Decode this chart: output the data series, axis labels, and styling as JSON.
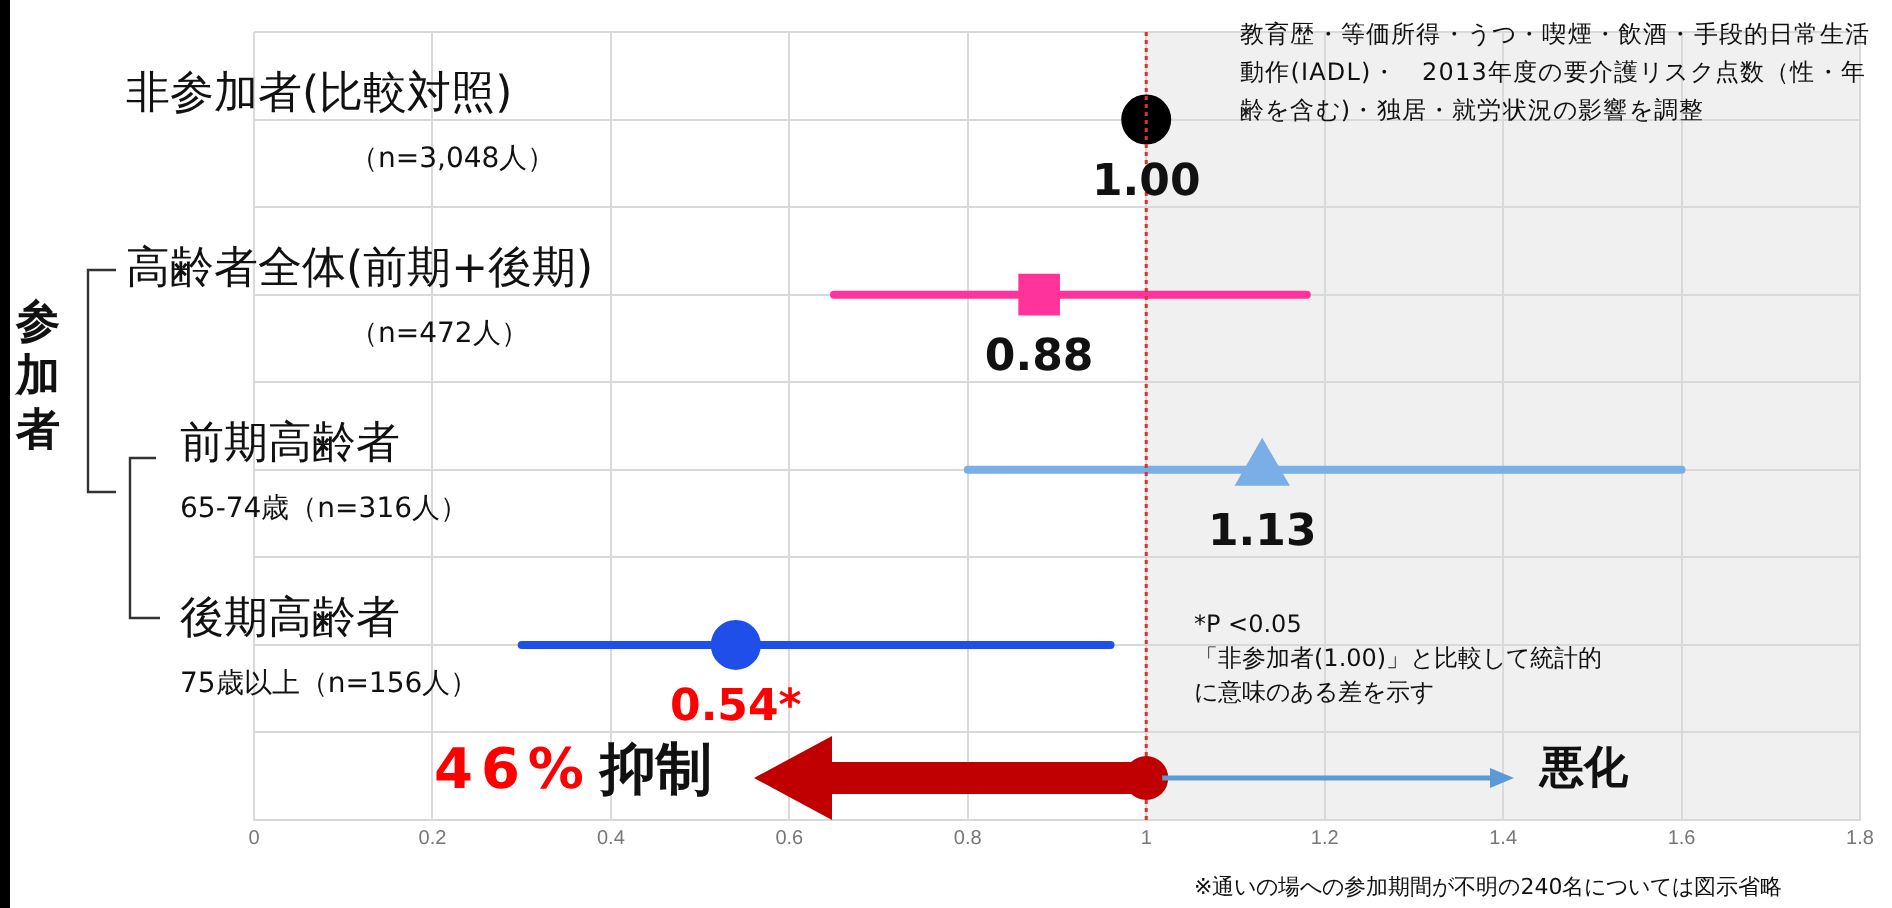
{
  "chart_data": {
    "type": "scatter",
    "orientation": "horizontal",
    "categories": [
      "非参加者(比較対照)\n（n=3,048人）",
      "高齢者全体(前期+後期)\n（n=472人）",
      "前期高齢者\n65-74歳（n=316人）",
      "後期高齢者\n75歳以上（n=156人）"
    ],
    "series": [
      {
        "color": "#000000",
        "marker": "circle",
        "values": [
          1.0,
          null,
          null,
          null
        ],
        "value_labels": [
          "1.00",
          null,
          null,
          null
        ]
      },
      {
        "color": "#ff3399",
        "marker": "square",
        "values": [
          null,
          0.88,
          null,
          null
        ],
        "errors": [
          null,
          [
            0.65,
            1.18
          ],
          null,
          null
        ],
        "value_labels": [
          null,
          "0.88",
          null,
          null
        ]
      },
      {
        "color": "#7aaee6",
        "marker": "triangle",
        "values": [
          null,
          null,
          1.13,
          null
        ],
        "errors": [
          null,
          null,
          [
            0.8,
            1.6
          ],
          null
        ],
        "value_labels": [
          null,
          null,
          "1.13",
          null
        ]
      },
      {
        "color": "#1f4fe8",
        "marker": "circle",
        "values": [
          null,
          null,
          null,
          0.54
        ],
        "errors": [
          null,
          null,
          null,
          [
            0.3,
            0.96
          ]
        ],
        "value_labels": [
          null,
          null,
          null,
          "0.54*"
        ]
      }
    ],
    "xlim": [
      0,
      1.8
    ],
    "xticks": [
      0,
      0.2,
      0.4,
      0.6,
      0.8,
      1,
      1.2,
      1.4,
      1.6,
      1.8
    ],
    "grid": true,
    "legend": false,
    "ref_lines": [
      {
        "axis": "x",
        "value": 1,
        "color": "#e03030",
        "line_style": "dotted"
      }
    ],
    "bands": [
      {
        "axis": "x",
        "from": 1,
        "to": 1.8,
        "color": "#f0f0f0"
      }
    ],
    "annotations": [
      "教育歴・等価所得・うつ・喫煙・飲酒・手段的日常生活動作(IADL)・　2013年度の要介護リスク点数（性・年齢を含む)・独居・就労状況の影響を調整",
      "*P <0.05\n「非参加者(1.00)」と比較して統計的に意味のある差を示す",
      "46%",
      "抑制",
      "悪化",
      "参加者",
      "※通いの場への参加期間が不明の240名については図示省略"
    ]
  }
}
